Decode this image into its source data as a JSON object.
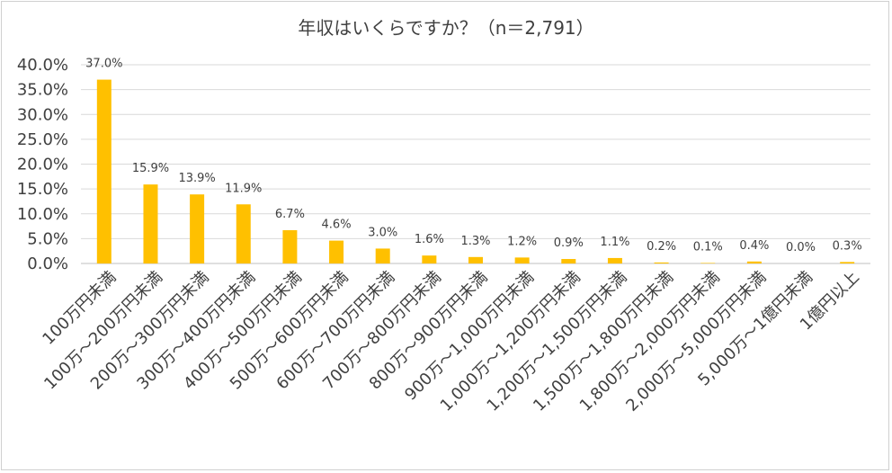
{
  "chart_data": {
    "type": "bar",
    "title": "年収はいくらですか？（n＝2,791）",
    "xlabel": "",
    "ylabel": "",
    "ylim": [
      0,
      40
    ],
    "yticks": [
      "0.0%",
      "5.0%",
      "10.0%",
      "15.0%",
      "20.0%",
      "25.0%",
      "30.0%",
      "35.0%",
      "40.0%"
    ],
    "grid": true,
    "bar_color": "#FFC000",
    "categories": [
      "100万円未満",
      "100万～200万円未満",
      "200万～300万円未満",
      "300万～400万円未満",
      "400万～500万円未満",
      "500万～600万円未満",
      "600万～700万円未満",
      "700万～800万円未満",
      "800万～900万円未満",
      "900万～1,000万円未満",
      "1,000万～1,200万円未満",
      "1,200万～1,500万円未満",
      "1,500万～1,800万円未満",
      "1,800万～2,000万円未満",
      "2,000万～5,000万円未満",
      "5,000万～1億円未満",
      "1億円以上"
    ],
    "values": [
      37.0,
      15.9,
      13.9,
      11.9,
      6.7,
      4.6,
      3.0,
      1.6,
      1.3,
      1.2,
      0.9,
      1.1,
      0.2,
      0.1,
      0.4,
      0.0,
      0.3
    ],
    "data_labels": [
      "37.0%",
      "15.9%",
      "13.9%",
      "11.9%",
      "6.7%",
      "4.6%",
      "3.0%",
      "1.6%",
      "1.3%",
      "1.2%",
      "0.9%",
      "1.1%",
      "0.2%",
      "0.1%",
      "0.4%",
      "0.0%",
      "0.3%"
    ]
  }
}
